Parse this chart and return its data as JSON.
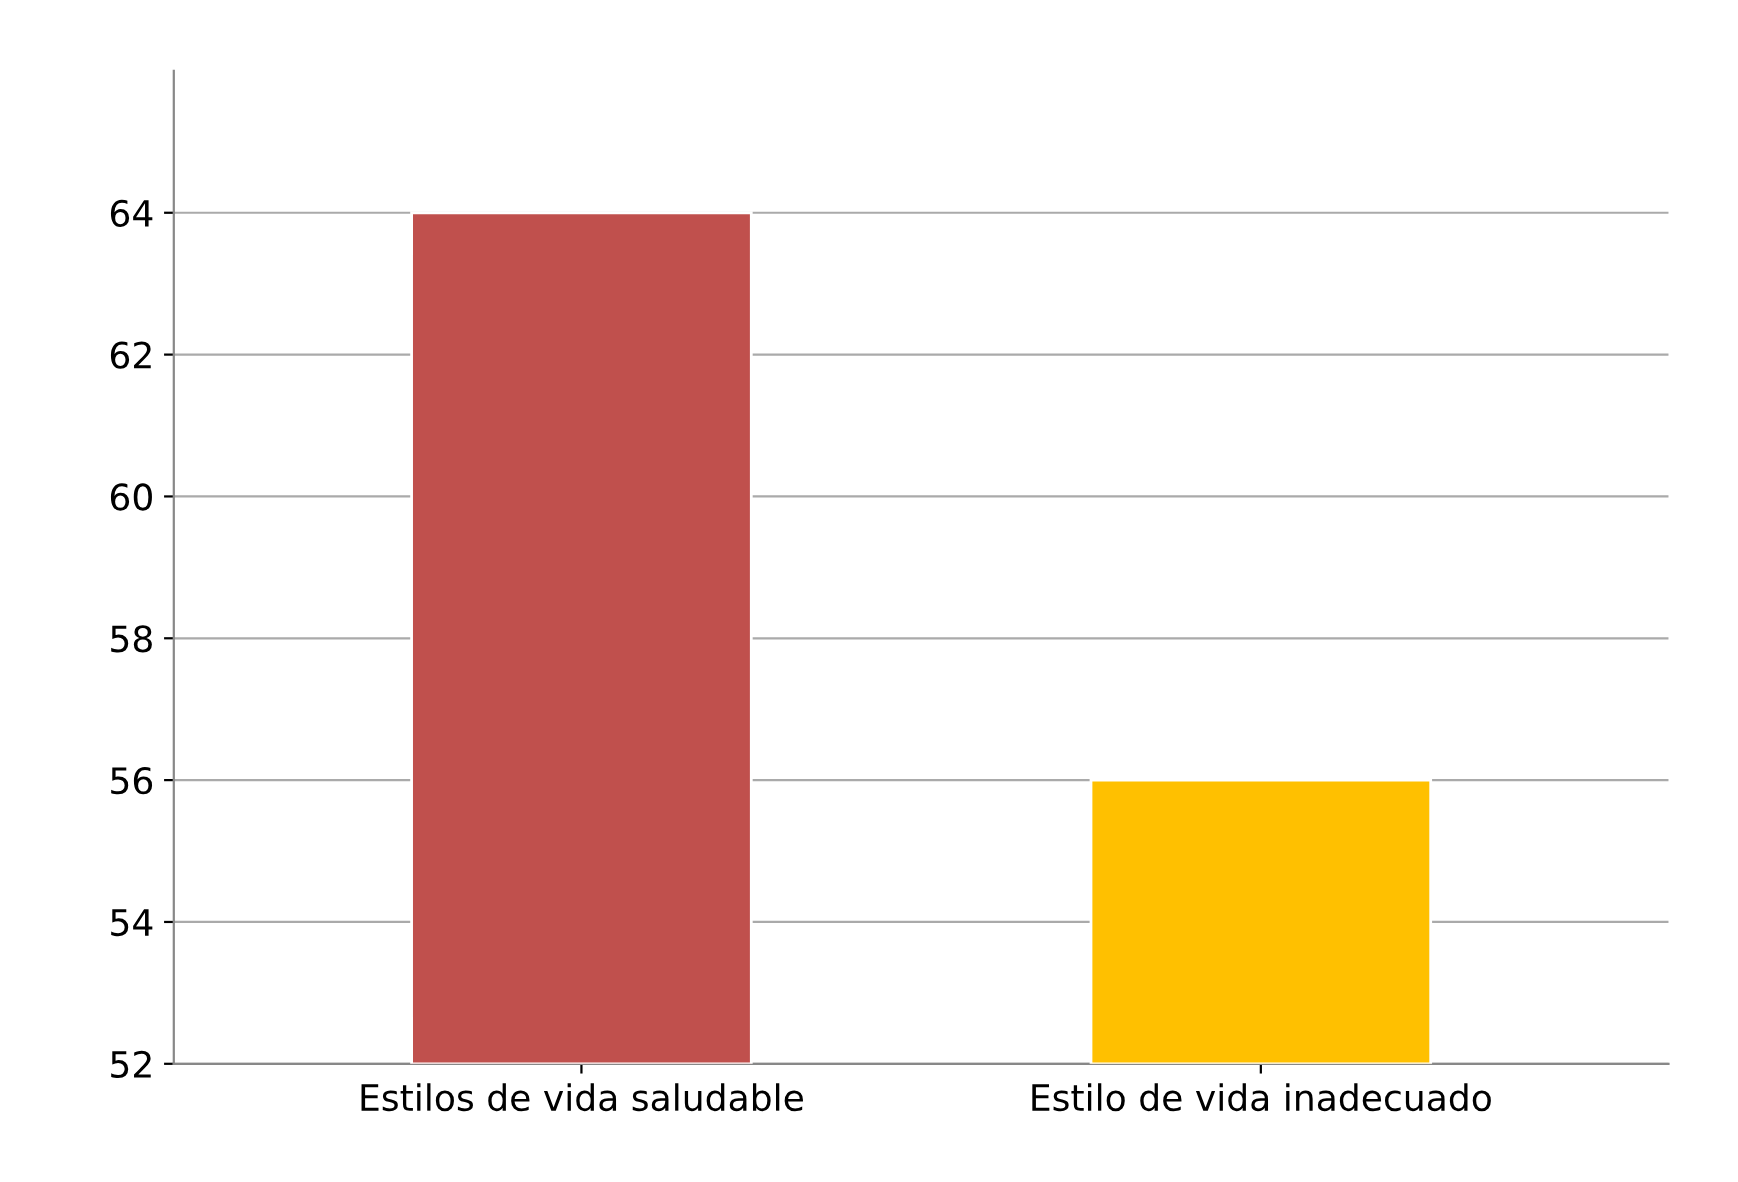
{
  "chart_data": {
    "type": "bar",
    "categories": [
      "Estilos de vida saludable",
      "Estilo de vida inadecuado"
    ],
    "values": [
      64,
      56
    ],
    "colors": [
      "#c0504d",
      "#ffc000"
    ],
    "ylim": [
      52,
      66
    ],
    "yticks": [
      52,
      54,
      56,
      58,
      60,
      62,
      64
    ],
    "grid": "y"
  }
}
